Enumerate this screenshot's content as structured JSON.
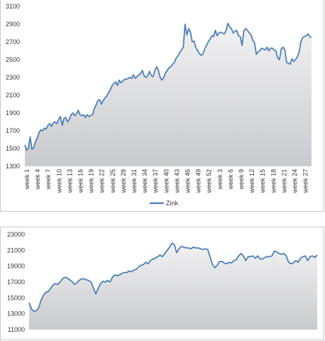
{
  "colors": {
    "line": "#4f7fb7",
    "area_top": "#f2f2f3",
    "area_bottom": "#c9cacd"
  },
  "chart_data": [
    {
      "type": "area",
      "ylim": [
        1300,
        3100
      ],
      "yticks": [
        1300,
        1500,
        1700,
        1900,
        2100,
        2300,
        2500,
        2700,
        2900,
        3100
      ],
      "xtick_labels": [
        "week 1",
        "week 4",
        "week 7",
        "week 10",
        "week 13",
        "week 16",
        "week 19",
        "week 22",
        "week 25",
        "week 28",
        "week 31",
        "week 34",
        "week 37",
        "week 40",
        "week 43",
        "week 46",
        "week 49",
        "week 52",
        "week 3",
        "week 6",
        "week 9",
        "week 12",
        "week 15",
        "week 18",
        "week 21",
        "week 24",
        "week 27"
      ],
      "legend": "top-bottom",
      "series": [
        {
          "name": "Zink",
          "values": [
            1540,
            1480,
            1510,
            1630,
            1490,
            1510,
            1580,
            1620,
            1680,
            1710,
            1700,
            1730,
            1720,
            1760,
            1780,
            1750,
            1790,
            1800,
            1780,
            1830,
            1860,
            1760,
            1840,
            1850,
            1800,
            1830,
            1880,
            1900,
            1870,
            1890,
            1930,
            1880,
            1870,
            1880,
            1850,
            1880,
            1860,
            1870,
            1880,
            1950,
            1990,
            2040,
            2050,
            2000,
            2040,
            2070,
            2090,
            2130,
            2160,
            2210,
            2230,
            2250,
            2210,
            2270,
            2240,
            2260,
            2280,
            2280,
            2290,
            2300,
            2290,
            2330,
            2290,
            2310,
            2330,
            2340,
            2380,
            2320,
            2300,
            2320,
            2370,
            2320,
            2310,
            2380,
            2420,
            2380,
            2300,
            2270,
            2300,
            2350,
            2380,
            2410,
            2420,
            2450,
            2470,
            2520,
            2540,
            2580,
            2610,
            2640,
            2900,
            2780,
            2850,
            2810,
            2700,
            2710,
            2640,
            2600,
            2570,
            2550,
            2560,
            2620,
            2660,
            2700,
            2730,
            2770,
            2760,
            2830,
            2770,
            2800,
            2810,
            2800,
            2790,
            2830,
            2910,
            2870,
            2850,
            2800,
            2820,
            2830,
            2770,
            2760,
            2660,
            2820,
            2850,
            2830,
            2800,
            2780,
            2720,
            2690,
            2560,
            2590,
            2600,
            2630,
            2620,
            2610,
            2640,
            2600,
            2630,
            2630,
            2610,
            2600,
            2520,
            2500,
            2620,
            2640,
            2610,
            2470,
            2460,
            2450,
            2510,
            2480,
            2500,
            2530,
            2580,
            2700,
            2750,
            2760,
            2770,
            2790,
            2760,
            2750
          ]
        }
      ]
    },
    {
      "type": "area",
      "ylim": [
        11000,
        23000
      ],
      "yticks": [
        11000,
        13000,
        15000,
        17000,
        19000,
        21000,
        23000
      ],
      "series": [
        {
          "values": [
            14400,
            13600,
            13300,
            13400,
            13700,
            14700,
            15300,
            15700,
            15800,
            16200,
            16600,
            16800,
            16700,
            17000,
            17400,
            17600,
            17500,
            17300,
            17100,
            16700,
            16900,
            17200,
            17400,
            17400,
            17300,
            17200,
            17000,
            16300,
            15500,
            16200,
            16800,
            17100,
            17000,
            17200,
            17000,
            17600,
            17900,
            17800,
            17900,
            18100,
            18200,
            18200,
            18400,
            18300,
            18500,
            18600,
            18900,
            19100,
            19200,
            19500,
            19300,
            19700,
            19900,
            20000,
            20200,
            20400,
            20200,
            20600,
            21000,
            21400,
            21900,
            21700,
            20700,
            21200,
            21500,
            21400,
            21300,
            21300,
            21200,
            21400,
            21300,
            21300,
            21200,
            21100,
            21200,
            21100,
            20200,
            19200,
            18800,
            19100,
            19600,
            19600,
            19400,
            19300,
            19500,
            19400,
            19700,
            19800,
            20300,
            20600,
            20300,
            19700,
            20200,
            20200,
            20300,
            20000,
            20300,
            19900,
            19900,
            20100,
            20200,
            20200,
            20300,
            20900,
            20800,
            20600,
            20500,
            20600,
            20300,
            19500,
            19300,
            19400,
            19700,
            19500,
            20000,
            20200,
            20300,
            19700,
            20200,
            20300,
            20100,
            20400
          ]
        }
      ]
    }
  ]
}
